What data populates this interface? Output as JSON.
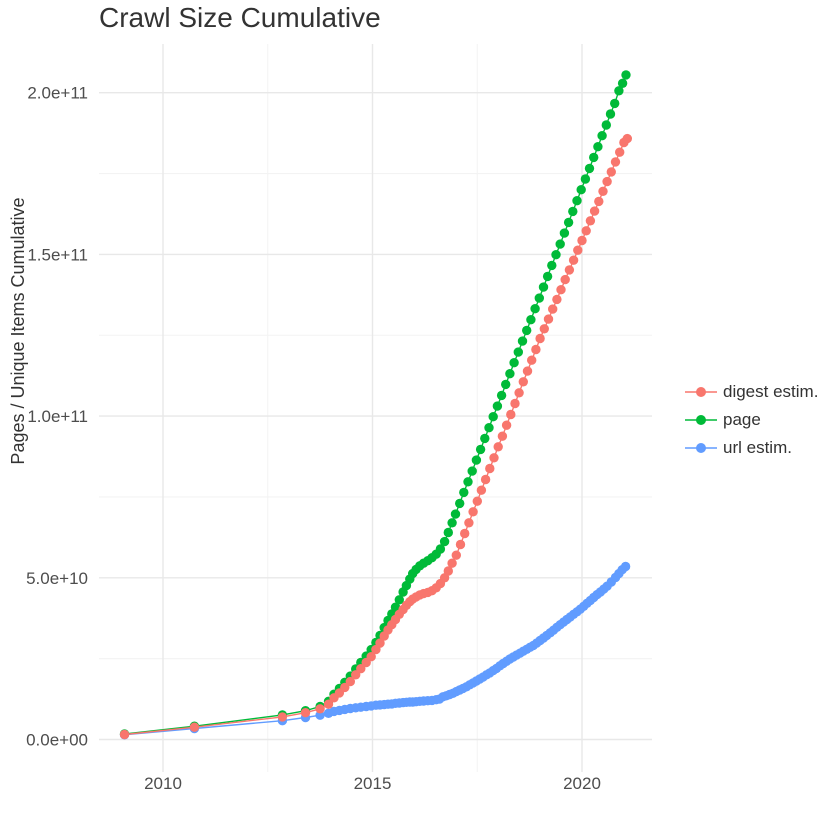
{
  "chart_data": {
    "type": "line",
    "title": "Crawl Size Cumulative",
    "xlabel": "",
    "ylabel": "Pages / Unique Items Cumulative",
    "grid": true,
    "legend_position": "right",
    "value_units": "point values stored as [year, billions]; 1 billion = 1e9",
    "xlim": [
      2008.5,
      2021.7
    ],
    "ylim_e9": [
      -10,
      215
    ],
    "x_ticks": [
      {
        "value": 2010,
        "label": "2010"
      },
      {
        "value": 2015,
        "label": "2015"
      },
      {
        "value": 2020,
        "label": "2020"
      }
    ],
    "x_minor_ticks": [
      2012.5,
      2017.5
    ],
    "y_ticks": [
      {
        "value_e9": 0,
        "label": "0.0e+00"
      },
      {
        "value_e9": 50,
        "label": "5.0e+10"
      },
      {
        "value_e9": 100,
        "label": "1.0e+11"
      },
      {
        "value_e9": 150,
        "label": "1.5e+11"
      },
      {
        "value_e9": 200,
        "label": "2.0e+11"
      }
    ],
    "y_minor_ticks_e9": [
      25,
      75,
      125,
      175
    ],
    "legend": [
      {
        "label": "digest estim.",
        "color": "#F8766D"
      },
      {
        "label": "page",
        "color": "#00BA38"
      },
      {
        "label": "url estim.",
        "color": "#619CFF"
      }
    ],
    "series": [
      {
        "name": "digest estim.",
        "color": "#F8766D",
        "points_year_billions": [
          [
            2009.08,
            1.55
          ],
          [
            2010.75,
            3.8
          ],
          [
            2012.85,
            7.0
          ],
          [
            2013.4,
            8.3
          ],
          [
            2013.75,
            9.5
          ],
          [
            2013.95,
            10.9
          ],
          [
            2014.08,
            12.9
          ],
          [
            2014.21,
            14.4
          ],
          [
            2014.34,
            16.1
          ],
          [
            2014.47,
            17.9
          ],
          [
            2014.6,
            20.0
          ],
          [
            2014.72,
            21.9
          ],
          [
            2014.85,
            23.8
          ],
          [
            2014.97,
            25.6
          ],
          [
            2015.08,
            27.8
          ],
          [
            2015.18,
            29.8
          ],
          [
            2015.28,
            32.0
          ],
          [
            2015.37,
            33.9
          ],
          [
            2015.46,
            35.5
          ],
          [
            2015.55,
            37.1
          ],
          [
            2015.64,
            38.7
          ],
          [
            2015.73,
            40.2
          ],
          [
            2015.81,
            41.5
          ],
          [
            2015.89,
            42.6
          ],
          [
            2015.96,
            43.4
          ],
          [
            2016.04,
            44.1
          ],
          [
            2016.13,
            44.7
          ],
          [
            2016.22,
            45.1
          ],
          [
            2016.32,
            45.5
          ],
          [
            2016.42,
            46.0
          ],
          [
            2016.52,
            46.9
          ],
          [
            2016.62,
            48.2
          ],
          [
            2016.72,
            50.0
          ],
          [
            2016.81,
            52.1
          ],
          [
            2016.9,
            54.5
          ],
          [
            2017.0,
            57.0
          ],
          [
            2017.1,
            60.3
          ],
          [
            2017.2,
            63.7
          ],
          [
            2017.3,
            67.0
          ],
          [
            2017.4,
            70.4
          ],
          [
            2017.5,
            73.7
          ],
          [
            2017.6,
            77.1
          ],
          [
            2017.7,
            80.4
          ],
          [
            2017.8,
            83.8
          ],
          [
            2017.9,
            87.1
          ],
          [
            2018.0,
            90.5
          ],
          [
            2018.1,
            93.8
          ],
          [
            2018.2,
            97.2
          ],
          [
            2018.3,
            100.5
          ],
          [
            2018.4,
            103.9
          ],
          [
            2018.5,
            107.2
          ],
          [
            2018.6,
            110.6
          ],
          [
            2018.7,
            113.9
          ],
          [
            2018.8,
            117.3
          ],
          [
            2018.9,
            120.6
          ],
          [
            2019.0,
            124.0
          ],
          [
            2019.1,
            127.0
          ],
          [
            2019.2,
            130.0
          ],
          [
            2019.3,
            133.1
          ],
          [
            2019.4,
            136.1
          ],
          [
            2019.5,
            139.1
          ],
          [
            2019.6,
            142.2
          ],
          [
            2019.7,
            145.2
          ],
          [
            2019.8,
            148.2
          ],
          [
            2019.9,
            151.3
          ],
          [
            2020.0,
            154.3
          ],
          [
            2020.1,
            157.3
          ],
          [
            2020.2,
            160.4
          ],
          [
            2020.3,
            163.4
          ],
          [
            2020.4,
            166.4
          ],
          [
            2020.5,
            169.5
          ],
          [
            2020.6,
            172.5
          ],
          [
            2020.7,
            175.5
          ],
          [
            2020.8,
            178.6
          ],
          [
            2020.9,
            181.6
          ],
          [
            2021.0,
            184.6
          ],
          [
            2021.08,
            185.8
          ]
        ]
      },
      {
        "name": "page",
        "color": "#00BA38",
        "points_year_billions": [
          [
            2009.08,
            1.7
          ],
          [
            2010.75,
            4.1
          ],
          [
            2012.85,
            7.6
          ],
          [
            2013.4,
            8.9
          ],
          [
            2013.75,
            10.2
          ],
          [
            2013.95,
            11.8
          ],
          [
            2014.08,
            14.0
          ],
          [
            2014.21,
            15.8
          ],
          [
            2014.34,
            17.7
          ],
          [
            2014.47,
            19.6
          ],
          [
            2014.6,
            21.8
          ],
          [
            2014.72,
            23.8
          ],
          [
            2014.85,
            25.8
          ],
          [
            2014.97,
            27.8
          ],
          [
            2015.08,
            30.0
          ],
          [
            2015.18,
            32.2
          ],
          [
            2015.28,
            34.6
          ],
          [
            2015.37,
            36.8
          ],
          [
            2015.46,
            38.8
          ],
          [
            2015.55,
            40.9
          ],
          [
            2015.64,
            43.2
          ],
          [
            2015.73,
            45.6
          ],
          [
            2015.81,
            47.6
          ],
          [
            2015.89,
            49.6
          ],
          [
            2015.96,
            51.3
          ],
          [
            2016.04,
            52.6
          ],
          [
            2016.13,
            53.7
          ],
          [
            2016.22,
            54.5
          ],
          [
            2016.32,
            55.3
          ],
          [
            2016.42,
            56.2
          ],
          [
            2016.52,
            57.3
          ],
          [
            2016.62,
            58.9
          ],
          [
            2016.72,
            61.2
          ],
          [
            2016.81,
            64.0
          ],
          [
            2016.9,
            67.0
          ],
          [
            2016.98,
            69.7
          ],
          [
            2017.08,
            73.0
          ],
          [
            2017.18,
            76.4
          ],
          [
            2017.28,
            79.7
          ],
          [
            2017.38,
            83.0
          ],
          [
            2017.48,
            86.4
          ],
          [
            2017.58,
            89.7
          ],
          [
            2017.68,
            93.1
          ],
          [
            2017.78,
            96.4
          ],
          [
            2017.88,
            99.8
          ],
          [
            2017.98,
            103.1
          ],
          [
            2018.08,
            106.4
          ],
          [
            2018.18,
            109.8
          ],
          [
            2018.28,
            113.1
          ],
          [
            2018.38,
            116.5
          ],
          [
            2018.48,
            119.8
          ],
          [
            2018.58,
            123.2
          ],
          [
            2018.68,
            126.5
          ],
          [
            2018.78,
            129.8
          ],
          [
            2018.88,
            133.2
          ],
          [
            2018.98,
            136.5
          ],
          [
            2019.08,
            139.9
          ],
          [
            2019.18,
            143.2
          ],
          [
            2019.28,
            146.6
          ],
          [
            2019.38,
            149.9
          ],
          [
            2019.48,
            153.2
          ],
          [
            2019.58,
            156.6
          ],
          [
            2019.68,
            159.9
          ],
          [
            2019.78,
            163.3
          ],
          [
            2019.88,
            166.6
          ],
          [
            2019.98,
            170.0
          ],
          [
            2020.08,
            173.3
          ],
          [
            2020.18,
            176.6
          ],
          [
            2020.28,
            180.0
          ],
          [
            2020.38,
            183.3
          ],
          [
            2020.48,
            186.7
          ],
          [
            2020.58,
            190.0
          ],
          [
            2020.68,
            193.4
          ],
          [
            2020.78,
            196.7
          ],
          [
            2020.88,
            200.6
          ],
          [
            2020.97,
            202.9
          ],
          [
            2021.05,
            205.5
          ]
        ]
      },
      {
        "name": "url estim.",
        "color": "#619CFF",
        "points_year_billions": [
          [
            2009.08,
            1.45
          ],
          [
            2010.75,
            3.4
          ],
          [
            2012.85,
            5.8
          ],
          [
            2013.4,
            6.8
          ],
          [
            2013.75,
            7.5
          ],
          [
            2013.95,
            8.1
          ],
          [
            2014.08,
            8.7
          ],
          [
            2014.21,
            9.0
          ],
          [
            2014.34,
            9.3
          ],
          [
            2014.47,
            9.6
          ],
          [
            2014.6,
            9.8
          ],
          [
            2014.72,
            10.0
          ],
          [
            2014.85,
            10.2
          ],
          [
            2014.97,
            10.4
          ],
          [
            2015.08,
            10.6
          ],
          [
            2015.18,
            10.7
          ],
          [
            2015.28,
            10.8
          ],
          [
            2015.37,
            10.9
          ],
          [
            2015.46,
            11.0
          ],
          [
            2015.55,
            11.2
          ],
          [
            2015.64,
            11.3
          ],
          [
            2015.73,
            11.4
          ],
          [
            2015.81,
            11.5
          ],
          [
            2015.89,
            11.6
          ],
          [
            2015.96,
            11.6
          ],
          [
            2016.04,
            11.7
          ],
          [
            2016.13,
            11.8
          ],
          [
            2016.22,
            11.9
          ],
          [
            2016.32,
            12.0
          ],
          [
            2016.42,
            12.1
          ],
          [
            2016.52,
            12.3
          ],
          [
            2016.6,
            12.5
          ],
          [
            2016.68,
            13.2
          ],
          [
            2016.76,
            13.5
          ],
          [
            2016.84,
            13.9
          ],
          [
            2016.92,
            14.3
          ],
          [
            2017.0,
            14.8
          ],
          [
            2017.08,
            15.3
          ],
          [
            2017.16,
            15.8
          ],
          [
            2017.24,
            16.3
          ],
          [
            2017.32,
            16.9
          ],
          [
            2017.4,
            17.5
          ],
          [
            2017.48,
            18.1
          ],
          [
            2017.56,
            18.7
          ],
          [
            2017.64,
            19.3
          ],
          [
            2017.72,
            20.0
          ],
          [
            2017.8,
            20.6
          ],
          [
            2017.88,
            21.3
          ],
          [
            2017.96,
            22.0
          ],
          [
            2018.04,
            22.8
          ],
          [
            2018.12,
            23.5
          ],
          [
            2018.2,
            24.2
          ],
          [
            2018.28,
            24.9
          ],
          [
            2018.36,
            25.5
          ],
          [
            2018.44,
            26.1
          ],
          [
            2018.52,
            26.7
          ],
          [
            2018.6,
            27.3
          ],
          [
            2018.68,
            27.9
          ],
          [
            2018.76,
            28.5
          ],
          [
            2018.84,
            29.1
          ],
          [
            2018.92,
            29.8
          ],
          [
            2019.0,
            30.6
          ],
          [
            2019.08,
            31.4
          ],
          [
            2019.16,
            32.2
          ],
          [
            2019.24,
            33.0
          ],
          [
            2019.32,
            33.8
          ],
          [
            2019.4,
            34.7
          ],
          [
            2019.48,
            35.5
          ],
          [
            2019.56,
            36.3
          ],
          [
            2019.64,
            37.1
          ],
          [
            2019.72,
            37.9
          ],
          [
            2019.8,
            38.7
          ],
          [
            2019.88,
            39.5
          ],
          [
            2019.96,
            40.3
          ],
          [
            2020.04,
            41.2
          ],
          [
            2020.12,
            42.1
          ],
          [
            2020.2,
            43.0
          ],
          [
            2020.28,
            43.9
          ],
          [
            2020.36,
            44.8
          ],
          [
            2020.44,
            45.6
          ],
          [
            2020.52,
            46.5
          ],
          [
            2020.6,
            47.4
          ],
          [
            2020.7,
            48.7
          ],
          [
            2020.8,
            50.1
          ],
          [
            2020.88,
            51.3
          ],
          [
            2020.96,
            52.5
          ],
          [
            2021.04,
            53.5
          ]
        ]
      }
    ],
    "colors": {
      "background": "#FFFFFF",
      "grid_major": "#E8E8E8",
      "grid_minor": "#F3F3F3",
      "tick_text": "#4D4D4D",
      "title_text": "#333333"
    }
  }
}
